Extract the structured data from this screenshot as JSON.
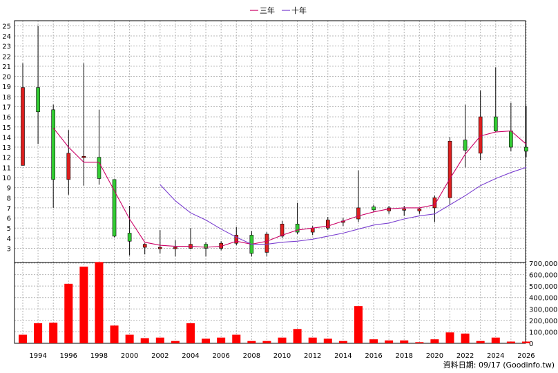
{
  "legend": {
    "ma3_label": "三年",
    "ma10_label": "十年",
    "ma3_color": "#cc0066",
    "ma10_color": "#7a3fd0"
  },
  "footer": {
    "source": "資料日期: 09/17  (Goodinfo.tw)"
  },
  "colors": {
    "up_body": "#dd1f1f",
    "down_body": "#33cc33",
    "volume_bar": "#ff0000",
    "grid": "#b4b4b4",
    "wick": "#000000"
  },
  "chart_data": {
    "type": "candlestick",
    "price_axis": {
      "ticks": [
        3,
        4,
        5,
        6,
        7,
        8,
        9,
        10,
        11,
        12,
        13,
        14,
        15,
        16,
        17,
        18,
        19,
        20,
        21,
        22,
        23,
        24,
        25
      ],
      "range": [
        1.6,
        25.5
      ]
    },
    "volume_axis": {
      "ticks": [
        "0",
        "100,000",
        "200,000",
        "300,000",
        "400,000",
        "500,000",
        "600,000",
        "700,000"
      ],
      "range": [
        0,
        700000
      ]
    },
    "x_axis": {
      "ticks": [
        "1994",
        "1996",
        "1998",
        "2000",
        "2002",
        "2004",
        "2006",
        "2008",
        "2010",
        "2012",
        "2014",
        "2016",
        "2018",
        "2020",
        "2022",
        "2024",
        "2026"
      ]
    },
    "candles": [
      {
        "year": 1993,
        "open": 11.2,
        "high": 21.3,
        "low": 11.2,
        "close": 18.9,
        "volume": 75000
      },
      {
        "year": 1994,
        "open": 18.9,
        "high": 25.0,
        "low": 13.3,
        "close": 16.5,
        "volume": 175000
      },
      {
        "year": 1995,
        "open": 16.7,
        "high": 17.2,
        "low": 7.0,
        "close": 9.8,
        "volume": 180000
      },
      {
        "year": 1996,
        "open": 9.8,
        "high": 14.7,
        "low": 8.3,
        "close": 12.4,
        "volume": 520000
      },
      {
        "year": 1997,
        "open": 12.0,
        "high": 21.3,
        "low": 9.2,
        "close": 12.1,
        "volume": 670000
      },
      {
        "year": 1998,
        "open": 12.0,
        "high": 16.7,
        "low": 9.3,
        "close": 9.9,
        "volume": 710000
      },
      {
        "year": 1999,
        "open": 9.8,
        "high": 9.8,
        "low": 4.1,
        "close": 4.2,
        "volume": 155000
      },
      {
        "year": 2000,
        "open": 4.5,
        "high": 7.2,
        "low": 2.3,
        "close": 3.7,
        "volume": 75000
      },
      {
        "year": 2001,
        "open": 3.1,
        "high": 3.5,
        "low": 2.4,
        "close": 3.4,
        "volume": 45000
      },
      {
        "year": 2002,
        "open": 3.0,
        "high": 4.8,
        "low": 2.5,
        "close": 3.1,
        "volume": 50000
      },
      {
        "year": 2003,
        "open": 3.1,
        "high": 3.8,
        "low": 2.2,
        "close": 3.1,
        "volume": 20000
      },
      {
        "year": 2004,
        "open": 3.0,
        "high": 5.0,
        "low": 2.9,
        "close": 3.4,
        "volume": 175000
      },
      {
        "year": 2005,
        "open": 3.4,
        "high": 3.6,
        "low": 2.2,
        "close": 3.0,
        "volume": 40000
      },
      {
        "year": 2006,
        "open": 3.0,
        "high": 3.7,
        "low": 2.8,
        "close": 3.5,
        "volume": 50000
      },
      {
        "year": 2007,
        "open": 3.5,
        "high": 5.1,
        "low": 3.3,
        "close": 4.3,
        "volume": 75000
      },
      {
        "year": 2008,
        "open": 4.3,
        "high": 4.7,
        "low": 2.2,
        "close": 2.5,
        "volume": 20000
      },
      {
        "year": 2009,
        "open": 2.6,
        "high": 4.6,
        "low": 2.2,
        "close": 4.4,
        "volume": 20000
      },
      {
        "year": 2010,
        "open": 4.2,
        "high": 5.7,
        "low": 4.0,
        "close": 5.4,
        "volume": 50000
      },
      {
        "year": 2011,
        "open": 5.4,
        "high": 7.5,
        "low": 4.4,
        "close": 4.6,
        "volume": 125000
      },
      {
        "year": 2012,
        "open": 4.6,
        "high": 5.2,
        "low": 4.3,
        "close": 5.0,
        "volume": 50000
      },
      {
        "year": 2013,
        "open": 5.0,
        "high": 6.1,
        "low": 4.8,
        "close": 5.8,
        "volume": 40000
      },
      {
        "year": 2014,
        "open": 5.6,
        "high": 6.0,
        "low": 5.2,
        "close": 5.7,
        "volume": 20000
      },
      {
        "year": 2015,
        "open": 5.9,
        "high": 10.7,
        "low": 5.6,
        "close": 7.0,
        "volume": 325000
      },
      {
        "year": 2016,
        "open": 7.1,
        "high": 7.3,
        "low": 6.6,
        "close": 6.8,
        "volume": 35000
      },
      {
        "year": 2017,
        "open": 6.7,
        "high": 7.2,
        "low": 6.4,
        "close": 7.0,
        "volume": 25000
      },
      {
        "year": 2018,
        "open": 6.9,
        "high": 7.2,
        "low": 6.2,
        "close": 6.9,
        "volume": 25000
      },
      {
        "year": 2019,
        "open": 6.7,
        "high": 7.0,
        "low": 6.4,
        "close": 6.9,
        "volume": 10000
      },
      {
        "year": 2020,
        "open": 7.0,
        "high": 8.2,
        "low": 5.6,
        "close": 8.0,
        "volume": 35000
      },
      {
        "year": 2021,
        "open": 8.0,
        "high": 14.0,
        "low": 7.3,
        "close": 13.6,
        "volume": 95000
      },
      {
        "year": 2022,
        "open": 13.7,
        "high": 17.2,
        "low": 11.0,
        "close": 12.7,
        "volume": 85000
      },
      {
        "year": 2023,
        "open": 12.4,
        "high": 18.6,
        "low": 11.7,
        "close": 16.0,
        "volume": 20000
      },
      {
        "year": 2024,
        "open": 16.0,
        "high": 20.9,
        "low": 14.5,
        "close": 14.6,
        "volume": 50000
      },
      {
        "year": 2025,
        "open": 14.6,
        "high": 17.4,
        "low": 12.6,
        "close": 13.0,
        "volume": 15000
      },
      {
        "year": 2026,
        "open": 13.0,
        "high": 17.1,
        "low": 12.0,
        "close": 12.6,
        "volume": 15000
      }
    ],
    "series": [
      {
        "name": "三年",
        "points": [
          [
            1995,
            14.9
          ],
          [
            1996,
            13.0
          ],
          [
            1997,
            11.5
          ],
          [
            1998,
            11.5
          ],
          [
            1999,
            8.7
          ],
          [
            2000,
            5.9
          ],
          [
            2001,
            3.6
          ],
          [
            2002,
            3.3
          ],
          [
            2003,
            3.2
          ],
          [
            2004,
            3.2
          ],
          [
            2005,
            3.1
          ],
          [
            2006,
            3.2
          ],
          [
            2007,
            3.7
          ],
          [
            2008,
            3.4
          ],
          [
            2009,
            3.7
          ],
          [
            2010,
            4.3
          ],
          [
            2011,
            4.8
          ],
          [
            2012,
            5.0
          ],
          [
            2013,
            5.2
          ],
          [
            2014,
            5.7
          ],
          [
            2015,
            6.2
          ],
          [
            2016,
            6.6
          ],
          [
            2017,
            6.9
          ],
          [
            2018,
            7.0
          ],
          [
            2019,
            7.0
          ],
          [
            2020,
            7.3
          ],
          [
            2021,
            9.9
          ],
          [
            2022,
            12.3
          ],
          [
            2023,
            14.1
          ],
          [
            2024,
            14.5
          ],
          [
            2025,
            14.6
          ],
          [
            2026,
            13.3
          ]
        ]
      },
      {
        "name": "十年",
        "points": [
          [
            2002,
            9.3
          ],
          [
            2003,
            7.7
          ],
          [
            2004,
            6.5
          ],
          [
            2005,
            5.8
          ],
          [
            2006,
            4.9
          ],
          [
            2007,
            4.1
          ],
          [
            2008,
            3.4
          ],
          [
            2009,
            3.4
          ],
          [
            2010,
            3.6
          ],
          [
            2011,
            3.7
          ],
          [
            2012,
            3.9
          ],
          [
            2013,
            4.2
          ],
          [
            2014,
            4.5
          ],
          [
            2015,
            4.9
          ],
          [
            2016,
            5.3
          ],
          [
            2017,
            5.5
          ],
          [
            2018,
            5.9
          ],
          [
            2019,
            6.2
          ],
          [
            2020,
            6.4
          ],
          [
            2021,
            7.3
          ],
          [
            2022,
            8.2
          ],
          [
            2023,
            9.2
          ],
          [
            2024,
            9.9
          ],
          [
            2025,
            10.5
          ],
          [
            2026,
            11.0
          ]
        ]
      }
    ]
  }
}
